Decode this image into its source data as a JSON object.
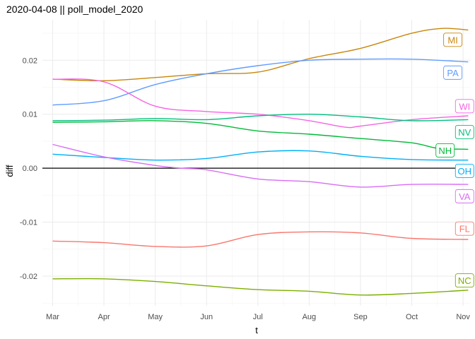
{
  "chart_data": {
    "type": "line",
    "title": "2020-04-08 || poll_model_2020",
    "xlabel": "t",
    "ylabel": "diff",
    "x_ticks": [
      "Mar",
      "Apr",
      "May",
      "Jun",
      "Jul",
      "Aug",
      "Sep",
      "Oct",
      "Nov"
    ],
    "y_ticks": [
      "-0.02",
      "-0.01",
      "0.00",
      "0.01",
      "0.02"
    ],
    "ylim": [
      -0.0255,
      0.0275
    ],
    "xlim": [
      -0.2,
      8.15
    ],
    "grid": true,
    "reference_line_y": 0,
    "x_units": "months since Mar 1",
    "series": [
      {
        "name": "MI",
        "color": "#c8860a",
        "x": [
          0,
          1,
          2,
          3,
          4,
          5,
          6,
          7,
          7.6,
          8.1
        ],
        "y": [
          0.0165,
          0.0162,
          0.0168,
          0.0175,
          0.0178,
          0.0203,
          0.0222,
          0.025,
          0.0259,
          0.0256
        ]
      },
      {
        "name": "PA",
        "color": "#619cff",
        "x": [
          0,
          1,
          2,
          3,
          4,
          5,
          6,
          7,
          8.1
        ],
        "y": [
          0.0117,
          0.0125,
          0.0155,
          0.0175,
          0.019,
          0.02,
          0.0202,
          0.0202,
          0.0197
        ]
      },
      {
        "name": "WI",
        "color": "#f564e3",
        "x": [
          0,
          1,
          2,
          3,
          4,
          5,
          5.7,
          6,
          7,
          8.1
        ],
        "y": [
          0.0165,
          0.016,
          0.0115,
          0.0105,
          0.01,
          0.0088,
          0.0076,
          0.0078,
          0.009,
          0.0097
        ]
      },
      {
        "name": "NV",
        "color": "#00bf7d",
        "x": [
          0,
          1,
          2,
          3,
          4,
          5,
          6,
          7,
          8.1
        ],
        "y": [
          0.0088,
          0.0089,
          0.0092,
          0.009,
          0.0097,
          0.01,
          0.0095,
          0.0088,
          0.009
        ]
      },
      {
        "name": "NH",
        "color": "#00ba38",
        "x": [
          0,
          1,
          2,
          3,
          4,
          5,
          6,
          7,
          7.5,
          8.1
        ],
        "y": [
          0.0085,
          0.0086,
          0.0088,
          0.0083,
          0.0069,
          0.0063,
          0.0055,
          0.0047,
          0.0037,
          0.0035
        ]
      },
      {
        "name": "OH",
        "color": "#00b0f6",
        "x": [
          0,
          1,
          2,
          3,
          4,
          5,
          6,
          7,
          8.1
        ],
        "y": [
          0.0026,
          0.002,
          0.0015,
          0.0018,
          0.003,
          0.0032,
          0.0022,
          0.0016,
          0.0015
        ]
      },
      {
        "name": "VA",
        "color": "#d96cf5",
        "x": [
          0,
          1,
          2,
          2.5,
          3,
          4,
          5,
          6,
          7,
          8.1
        ],
        "y": [
          0.0044,
          0.0021,
          0.0005,
          0.0,
          -0.0003,
          -0.002,
          -0.0025,
          -0.0035,
          -0.003,
          -0.003
        ]
      },
      {
        "name": "FL",
        "color": "#f8766d",
        "x": [
          0,
          1,
          2,
          3,
          4,
          5,
          6,
          7,
          8.1
        ],
        "y": [
          -0.0135,
          -0.0138,
          -0.0145,
          -0.0144,
          -0.0123,
          -0.0118,
          -0.012,
          -0.013,
          -0.0132
        ]
      },
      {
        "name": "NC",
        "color": "#7cae00",
        "x": [
          0,
          1,
          2,
          3,
          4,
          5,
          6,
          7,
          8.1
        ],
        "y": [
          -0.0205,
          -0.0205,
          -0.021,
          -0.0218,
          -0.0225,
          -0.0228,
          -0.0235,
          -0.0232,
          -0.0226
        ]
      }
    ]
  }
}
